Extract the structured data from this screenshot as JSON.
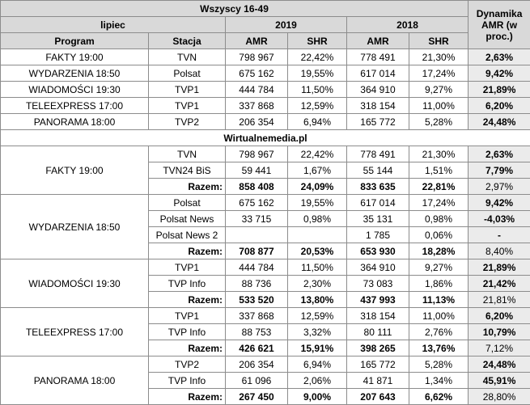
{
  "header": {
    "title": "Wszyscy 16-49",
    "dynamika": "Dynamika AMR (w proc.)",
    "period": "lipiec",
    "years": [
      "2019",
      "2018"
    ],
    "columns": [
      "Program",
      "Stacja",
      "AMR",
      "SHR",
      "AMR",
      "SHR"
    ]
  },
  "summary": {
    "rows": [
      [
        "FAKTY 19:00",
        "TVN",
        "798 967",
        "22,42%",
        "778 491",
        "21,30%",
        "2,63%"
      ],
      [
        "WYDARZENIA 18:50",
        "Polsat",
        "675 162",
        "19,55%",
        "617 014",
        "17,24%",
        "9,42%"
      ],
      [
        "WIADOMOŚCI 19:30",
        "TVP1",
        "444 784",
        "11,50%",
        "364 910",
        "9,27%",
        "21,89%"
      ],
      [
        "TELEEXPRESS 17:00",
        "TVP1",
        "337 868",
        "12,59%",
        "318 154",
        "11,00%",
        "6,20%"
      ],
      [
        "PANORAMA 18:00",
        "TVP2",
        "206 354",
        "6,94%",
        "165 772",
        "5,28%",
        "24,48%"
      ]
    ]
  },
  "source": "Wirtualnemedia.pl",
  "groups": [
    {
      "program": "FAKTY 19:00",
      "rows": [
        [
          "TVN",
          "798 967",
          "22,42%",
          "778 491",
          "21,30%",
          "2,63%"
        ],
        [
          "TVN24 BiS",
          "59 441",
          "1,67%",
          "55 144",
          "1,51%",
          "7,79%"
        ],
        [
          "Razem:",
          "858 408",
          "24,09%",
          "833 635",
          "22,81%",
          "2,97%"
        ]
      ]
    },
    {
      "program": "WYDARZENIA 18:50",
      "rows": [
        [
          "Polsat",
          "675 162",
          "19,55%",
          "617 014",
          "17,24%",
          "9,42%"
        ],
        [
          "Polsat News",
          "33 715",
          "0,98%",
          "35 131",
          "0,98%",
          "-4,03%"
        ],
        [
          "Polsat News 2",
          null,
          null,
          "1 785",
          "0,06%",
          "-"
        ],
        [
          "Razem:",
          "708 877",
          "20,53%",
          "653 930",
          "18,28%",
          "8,40%"
        ]
      ]
    },
    {
      "program": "WIADOMOŚCI 19:30",
      "rows": [
        [
          "TVP1",
          "444 784",
          "11,50%",
          "364 910",
          "9,27%",
          "21,89%"
        ],
        [
          "TVP Info",
          "88 736",
          "2,30%",
          "73 083",
          "1,86%",
          "21,42%"
        ],
        [
          "Razem:",
          "533 520",
          "13,80%",
          "437 993",
          "11,13%",
          "21,81%"
        ]
      ]
    },
    {
      "program": "TELEEXPRESS 17:00",
      "rows": [
        [
          "TVP1",
          "337 868",
          "12,59%",
          "318 154",
          "11,00%",
          "6,20%"
        ],
        [
          "TVP Info",
          "88 753",
          "3,32%",
          "80 111",
          "2,76%",
          "10,79%"
        ],
        [
          "Razem:",
          "426 621",
          "15,91%",
          "398 265",
          "13,76%",
          "7,12%"
        ]
      ]
    },
    {
      "program": "PANORAMA 18:00",
      "rows": [
        [
          "TVP2",
          "206 354",
          "6,94%",
          "165 772",
          "5,28%",
          "24,48%"
        ],
        [
          "TVP Info",
          "61 096",
          "2,06%",
          "41 871",
          "1,34%",
          "45,91%"
        ],
        [
          "Razem:",
          "267 450",
          "9,00%",
          "207 643",
          "6,62%",
          "28,80%"
        ]
      ]
    }
  ]
}
